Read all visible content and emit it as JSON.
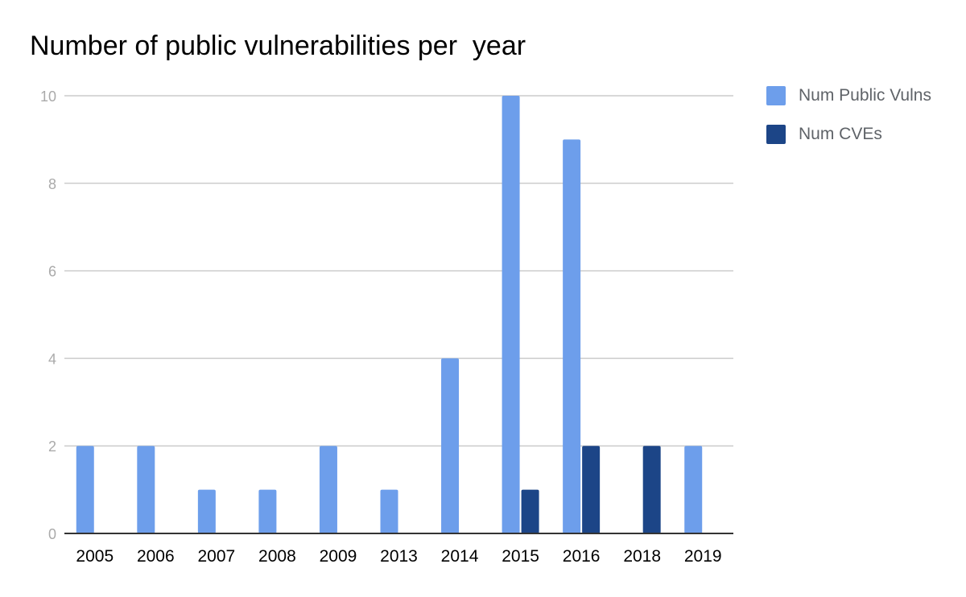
{
  "chart_data": {
    "type": "bar",
    "title": "Number of public vulnerabilities per  year",
    "xlabel": "",
    "ylabel": "",
    "categories": [
      "2005",
      "2006",
      "2007",
      "2008",
      "2009",
      "2013",
      "2014",
      "2015",
      "2016",
      "2018",
      "2019"
    ],
    "series": [
      {
        "name": "Num Public Vulns",
        "color": "#6d9eeb",
        "values": [
          2,
          2,
          1,
          1,
          2,
          1,
          4,
          10,
          9,
          0,
          2
        ]
      },
      {
        "name": "Num CVEs",
        "color": "#1c4587",
        "values": [
          0,
          0,
          0,
          0,
          0,
          0,
          0,
          1,
          2,
          2,
          0
        ]
      }
    ],
    "ylim": [
      0,
      10
    ],
    "yticks": [
      "0",
      "2",
      "4",
      "6",
      "8",
      "10"
    ],
    "grid": true,
    "legend_position": "right"
  }
}
